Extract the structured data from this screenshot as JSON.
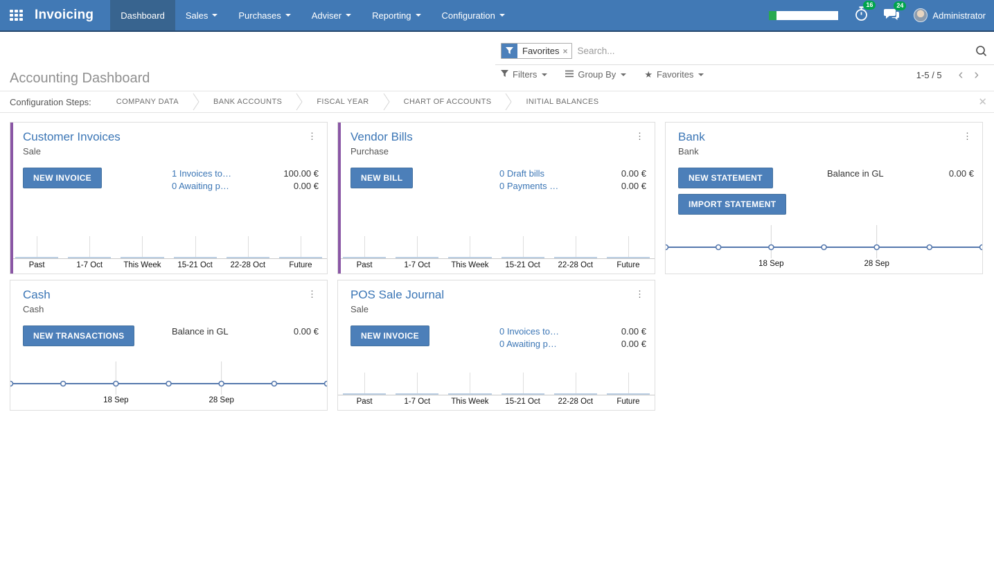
{
  "colors": {
    "navbar": "#4179b5",
    "navbar_active": "#38648f",
    "primary_button": "#4c7fb9",
    "card_title_link": "#3a75b5",
    "kanban_accent_purple": "#8a56a5",
    "badge_green": "#00a54c",
    "line_chart_blue": "#5578ad",
    "bar_fill": "#b9cde2"
  },
  "navbar": {
    "app_name": "Invoicing",
    "items": [
      {
        "label": "Dashboard",
        "active": true
      },
      {
        "label": "Sales"
      },
      {
        "label": "Purchases"
      },
      {
        "label": "Adviser"
      },
      {
        "label": "Reporting"
      },
      {
        "label": "Configuration"
      }
    ],
    "timer_badge": "16",
    "chat_badge": "24",
    "user_name": "Administrator"
  },
  "control_panel": {
    "title": "Accounting Dashboard",
    "search_facet": "Favorites",
    "search_placeholder": "Search...",
    "filters_label": "Filters",
    "group_by_label": "Group By",
    "favorites_label": "Favorites",
    "pager": "1-5 / 5"
  },
  "config_steps": {
    "label": "Configuration Steps:",
    "steps": [
      "COMPANY DATA",
      "BANK ACCOUNTS",
      "FISCAL YEAR",
      "CHART OF ACCOUNTS",
      "INITIAL BALANCES"
    ]
  },
  "cards": [
    {
      "title": "Customer Invoices",
      "subtitle": "Sale",
      "button": "NEW INVOICE",
      "stats": [
        {
          "link": "1 Invoices to…",
          "value": "100.00 €"
        },
        {
          "link": "0 Awaiting p…",
          "value": "0.00 €"
        }
      ],
      "chart": {
        "type": "bar",
        "categories": [
          "Past",
          "1-7 Oct",
          "This Week",
          "15-21 Oct",
          "22-28 Oct",
          "Future"
        ],
        "values": [
          0,
          0,
          0,
          0,
          0,
          0
        ]
      }
    },
    {
      "title": "Vendor Bills",
      "subtitle": "Purchase",
      "button": "NEW BILL",
      "stats": [
        {
          "link": "0 Draft bills",
          "value": "0.00 €"
        },
        {
          "link": "0 Payments …",
          "value": "0.00 €"
        }
      ],
      "chart": {
        "type": "bar",
        "categories": [
          "Past",
          "1-7 Oct",
          "This Week",
          "15-21 Oct",
          "22-28 Oct",
          "Future"
        ],
        "values": [
          0,
          0,
          0,
          0,
          0,
          0
        ]
      }
    },
    {
      "title": "Bank",
      "subtitle": "Bank",
      "button": "NEW STATEMENT",
      "button2": "IMPORT STATEMENT",
      "stats": [
        {
          "label": "Balance in GL",
          "value": "0.00 €"
        }
      ],
      "chart": {
        "type": "line",
        "x_ticks": [
          "18 Sep",
          "28 Sep"
        ],
        "tick_positions": [
          0.3333,
          0.6667
        ],
        "values": [
          0,
          0,
          0,
          0,
          0,
          0,
          0
        ]
      }
    },
    {
      "title": "Cash",
      "subtitle": "Cash",
      "button": "NEW TRANSACTIONS",
      "stats": [
        {
          "label": "Balance in GL",
          "value": "0.00 €"
        }
      ],
      "chart": {
        "type": "line",
        "x_ticks": [
          "18 Sep",
          "28 Sep"
        ],
        "tick_positions": [
          0.3333,
          0.6667
        ],
        "values": [
          0,
          0,
          0,
          0,
          0,
          0,
          0
        ]
      }
    },
    {
      "title": "POS Sale Journal",
      "subtitle": "Sale",
      "button": "NEW INVOICE",
      "stats": [
        {
          "link": "0 Invoices to…",
          "value": "0.00 €"
        },
        {
          "link": "0 Awaiting p…",
          "value": "0.00 €"
        }
      ],
      "chart": {
        "type": "bar",
        "categories": [
          "Past",
          "1-7 Oct",
          "This Week",
          "15-21 Oct",
          "22-28 Oct",
          "Future"
        ],
        "values": [
          0,
          0,
          0,
          0,
          0,
          0
        ]
      }
    }
  ]
}
